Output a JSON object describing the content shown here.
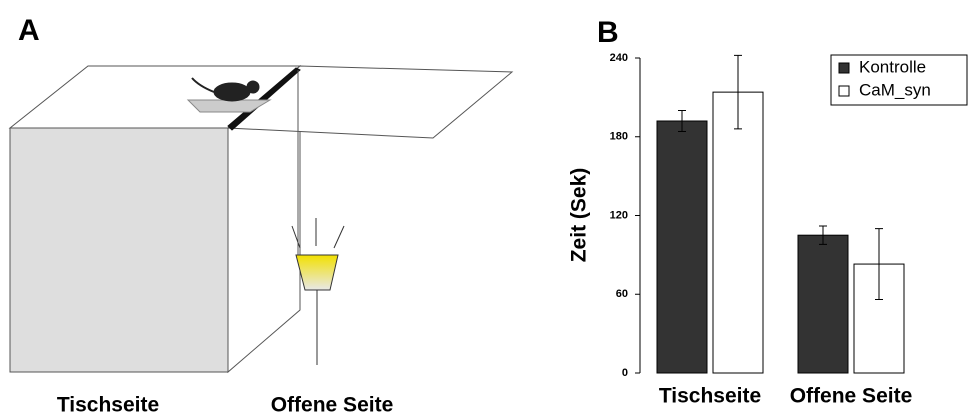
{
  "diagram": {
    "panel_label": "A",
    "labels": [
      "Tischseite",
      "Offene Seite"
    ]
  },
  "chart_data": {
    "type": "bar",
    "panel_label": "B",
    "y_label": "Zeit (Sek)",
    "categories": [
      "Tischseite",
      "Offene Seite"
    ],
    "series": [
      {
        "name": "Kontrolle",
        "color": "#333333",
        "values": [
          192,
          105
        ],
        "errors": [
          8,
          7
        ]
      },
      {
        "name": "CaM_syn",
        "color": "#ffffff",
        "values": [
          214,
          83
        ],
        "errors": [
          28,
          27
        ]
      }
    ],
    "ylim": [
      0,
      240
    ],
    "yticks": [
      0,
      60,
      120,
      180,
      240
    ],
    "legend": "top-right"
  }
}
